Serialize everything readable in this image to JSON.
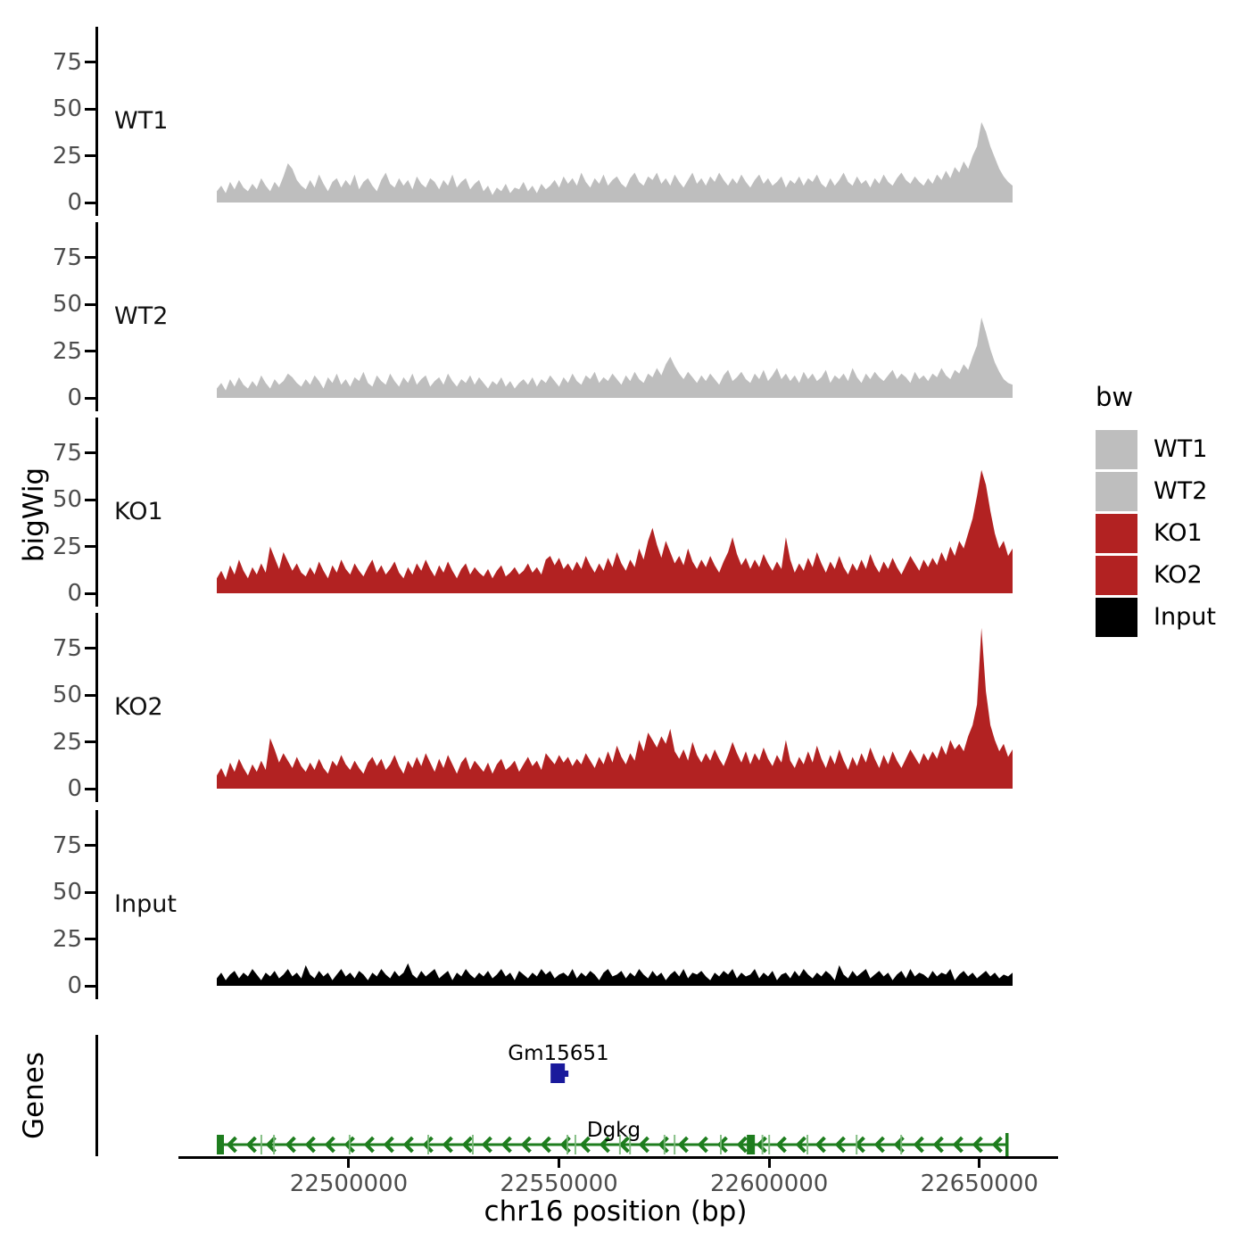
{
  "figure": {
    "y_axis_title": "bigWig",
    "genes_panel_title": "Genes",
    "x_axis_title": "chr16 position (bp)",
    "background_color": "#ffffff",
    "axis_color": "#000000",
    "tick_label_color": "#4d4d4d"
  },
  "legend": {
    "title": "bw",
    "entries": [
      {
        "label": "WT1",
        "color": "#bebebe"
      },
      {
        "label": "WT2",
        "color": "#bebebe"
      },
      {
        "label": "KO1",
        "color": "#b22222"
      },
      {
        "label": "KO2",
        "color": "#b22222"
      },
      {
        "label": "Input",
        "color": "#000000"
      }
    ]
  },
  "chart_data": {
    "type": "area",
    "title": "",
    "xlabel": "chr16 position (bp)",
    "ylabel": "bigWig",
    "grid": false,
    "legend_position": "right",
    "x_domain_bp": [
      22468600,
      22657900
    ],
    "x_ticks": [
      {
        "value": 22500000,
        "label": "22500000"
      },
      {
        "value": 22550000,
        "label": "22550000"
      },
      {
        "value": 22600000,
        "label": "22600000"
      },
      {
        "value": 22650000,
        "label": "22650000"
      }
    ],
    "y_ticks": [
      0,
      25,
      50,
      75
    ],
    "y_axis_max": 94,
    "tracks": [
      {
        "name": "WT1",
        "color": "#bebebe",
        "values": [
          6,
          9,
          5,
          11,
          7,
          12,
          8,
          6,
          10,
          7,
          13,
          9,
          6,
          11,
          8,
          14,
          21,
          18,
          12,
          9,
          7,
          12,
          8,
          15,
          10,
          6,
          11,
          13,
          8,
          12,
          9,
          15,
          7,
          11,
          13,
          9,
          6,
          12,
          16,
          10,
          8,
          13,
          9,
          12,
          7,
          14,
          10,
          8,
          13,
          11,
          7,
          12,
          9,
          15,
          8,
          11,
          13,
          7,
          10,
          12,
          6,
          9,
          4,
          8,
          6,
          10,
          5,
          8,
          7,
          11,
          6,
          9,
          5,
          10,
          7,
          9,
          12,
          8,
          14,
          10,
          13,
          9,
          16,
          11,
          8,
          13,
          10,
          15,
          9,
          12,
          14,
          10,
          8,
          13,
          16,
          11,
          9,
          14,
          12,
          16,
          10,
          13,
          9,
          15,
          11,
          8,
          12,
          16,
          10,
          13,
          9,
          14,
          11,
          16,
          12,
          9,
          13,
          10,
          15,
          11,
          8,
          12,
          15,
          10,
          13,
          9,
          11,
          14,
          8,
          12,
          10,
          14,
          9,
          13,
          11,
          15,
          10,
          8,
          13,
          9,
          12,
          16,
          11,
          9,
          14,
          10,
          12,
          8,
          13,
          10,
          15,
          11,
          9,
          13,
          16,
          12,
          10,
          14,
          11,
          9,
          13,
          10,
          15,
          12,
          17,
          13,
          19,
          16,
          22,
          18,
          25,
          30,
          43,
          38,
          30,
          24,
          18,
          14,
          11,
          9
        ]
      },
      {
        "name": "WT2",
        "color": "#bebebe",
        "values": [
          5,
          8,
          4,
          10,
          6,
          11,
          7,
          5,
          9,
          6,
          12,
          8,
          5,
          10,
          7,
          9,
          13,
          11,
          8,
          6,
          10,
          7,
          12,
          9,
          5,
          11,
          8,
          13,
          7,
          10,
          6,
          11,
          9,
          14,
          8,
          6,
          12,
          9,
          7,
          13,
          9,
          6,
          11,
          8,
          13,
          7,
          10,
          12,
          6,
          9,
          11,
          7,
          13,
          9,
          6,
          10,
          8,
          12,
          7,
          11,
          8,
          5,
          9,
          7,
          11,
          6,
          9,
          5,
          8,
          10,
          7,
          11,
          6,
          10,
          8,
          12,
          9,
          6,
          11,
          8,
          13,
          9,
          7,
          12,
          10,
          14,
          8,
          11,
          9,
          13,
          10,
          7,
          12,
          9,
          14,
          10,
          8,
          13,
          11,
          16,
          12,
          18,
          22,
          17,
          13,
          10,
          14,
          11,
          8,
          12,
          9,
          13,
          10,
          7,
          12,
          15,
          9,
          11,
          14,
          10,
          8,
          13,
          10,
          15,
          9,
          12,
          16,
          10,
          13,
          9,
          12,
          8,
          14,
          10,
          13,
          9,
          11,
          15,
          8,
          12,
          10,
          13,
          9,
          16,
          11,
          8,
          13,
          10,
          14,
          11,
          9,
          12,
          15,
          10,
          13,
          11,
          8,
          14,
          10,
          12,
          9,
          13,
          11,
          16,
          12,
          10,
          15,
          13,
          18,
          15,
          22,
          28,
          43,
          35,
          26,
          19,
          14,
          10,
          8,
          7
        ]
      },
      {
        "name": "KO1",
        "color": "#b22222",
        "values": [
          8,
          12,
          7,
          15,
          10,
          18,
          12,
          8,
          14,
          10,
          16,
          11,
          25,
          19,
          13,
          22,
          17,
          12,
          16,
          11,
          9,
          14,
          10,
          17,
          12,
          8,
          15,
          11,
          18,
          13,
          10,
          16,
          12,
          9,
          14,
          18,
          11,
          15,
          10,
          13,
          17,
          11,
          8,
          14,
          10,
          16,
          12,
          18,
          13,
          9,
          15,
          11,
          17,
          12,
          8,
          13,
          16,
          10,
          14,
          11,
          9,
          13,
          8,
          12,
          15,
          9,
          11,
          14,
          10,
          12,
          16,
          11,
          14,
          10,
          18,
          20,
          15,
          19,
          13,
          16,
          12,
          17,
          13,
          20,
          15,
          11,
          16,
          12,
          19,
          14,
          22,
          16,
          12,
          18,
          14,
          24,
          18,
          28,
          35,
          26,
          19,
          28,
          22,
          16,
          20,
          15,
          24,
          17,
          13,
          18,
          14,
          20,
          15,
          11,
          17,
          22,
          30,
          21,
          15,
          19,
          13,
          18,
          14,
          21,
          16,
          12,
          17,
          13,
          30,
          18,
          11,
          16,
          12,
          19,
          14,
          22,
          16,
          11,
          17,
          13,
          20,
          14,
          10,
          16,
          12,
          18,
          13,
          21,
          15,
          11,
          17,
          13,
          19,
          14,
          10,
          15,
          20,
          16,
          12,
          18,
          14,
          19,
          15,
          22,
          17,
          25,
          20,
          28,
          24,
          32,
          40,
          52,
          66,
          58,
          44,
          32,
          24,
          28,
          20,
          24
        ]
      },
      {
        "name": "KO2",
        "color": "#b22222",
        "values": [
          7,
          11,
          6,
          14,
          9,
          16,
          11,
          7,
          13,
          9,
          15,
          10,
          27,
          21,
          14,
          19,
          15,
          11,
          17,
          12,
          9,
          14,
          10,
          16,
          11,
          8,
          15,
          12,
          18,
          13,
          10,
          15,
          11,
          8,
          14,
          17,
          12,
          16,
          10,
          13,
          18,
          12,
          8,
          15,
          11,
          17,
          12,
          19,
          14,
          9,
          16,
          11,
          18,
          13,
          8,
          14,
          17,
          10,
          15,
          12,
          9,
          14,
          8,
          13,
          16,
          10,
          12,
          15,
          9,
          13,
          17,
          12,
          15,
          10,
          19,
          16,
          13,
          18,
          14,
          17,
          12,
          16,
          13,
          19,
          15,
          11,
          17,
          13,
          20,
          14,
          23,
          17,
          13,
          19,
          15,
          26,
          20,
          30,
          26,
          22,
          28,
          24,
          32,
          20,
          16,
          21,
          15,
          25,
          18,
          14,
          19,
          15,
          21,
          16,
          12,
          18,
          25,
          19,
          14,
          20,
          13,
          19,
          15,
          22,
          16,
          12,
          18,
          14,
          26,
          15,
          11,
          17,
          13,
          20,
          14,
          23,
          16,
          11,
          18,
          13,
          21,
          15,
          10,
          17,
          12,
          19,
          14,
          22,
          16,
          11,
          18,
          13,
          20,
          15,
          11,
          16,
          21,
          17,
          13,
          19,
          15,
          20,
          16,
          23,
          18,
          26,
          21,
          24,
          20,
          28,
          34,
          45,
          86,
          52,
          34,
          26,
          20,
          24,
          17,
          21
        ]
      },
      {
        "name": "Input",
        "color": "#000000",
        "values": [
          4,
          7,
          3,
          6,
          8,
          4,
          7,
          5,
          9,
          6,
          3,
          7,
          5,
          8,
          4,
          6,
          9,
          5,
          7,
          4,
          11,
          6,
          4,
          8,
          5,
          7,
          3,
          6,
          9,
          5,
          7,
          4,
          8,
          6,
          3,
          7,
          5,
          9,
          6,
          4,
          8,
          5,
          7,
          12,
          6,
          4,
          8,
          5,
          7,
          9,
          4,
          6,
          8,
          3,
          7,
          5,
          9,
          6,
          4,
          7,
          5,
          8,
          4,
          6,
          9,
          5,
          7,
          3,
          8,
          6,
          4,
          7,
          5,
          9,
          6,
          8,
          4,
          6,
          7,
          5,
          9,
          4,
          7,
          5,
          8,
          6,
          3,
          7,
          9,
          5,
          6,
          8,
          4,
          7,
          5,
          9,
          6,
          4,
          8,
          5,
          7,
          3,
          6,
          8,
          5,
          9,
          4,
          7,
          6,
          8,
          5,
          3,
          7,
          5,
          8,
          6,
          9,
          4,
          7,
          5,
          6,
          9,
          4,
          7,
          5,
          8,
          3,
          6,
          7,
          4,
          8,
          5,
          9,
          6,
          4,
          7,
          5,
          8,
          6,
          3,
          11,
          6,
          4,
          8,
          5,
          7,
          9,
          4,
          6,
          8,
          5,
          7,
          3,
          6,
          8,
          4,
          9,
          5,
          7,
          6,
          4,
          8,
          5,
          7,
          6,
          9,
          3,
          6,
          8,
          5,
          7,
          4,
          6,
          8,
          5,
          7,
          4,
          6,
          5,
          7
        ]
      }
    ],
    "genes": [
      {
        "name": "Gm15651",
        "color": "#1a1a9c",
        "start_bp": 22548000,
        "end_bp": 22551400,
        "glyph": "box"
      },
      {
        "name": "Dgkg",
        "color": "#1e7d1e",
        "exon_tick_color": "#79b879",
        "start_bp": 22468600,
        "end_bp": 22656200,
        "strand": "-",
        "exon_ticks_bp": [
          22479200,
          22482200,
          22500200,
          22518900,
          22529500,
          22552000,
          22553900,
          22564500,
          22566900,
          22575100,
          22577500,
          22588500,
          22598400,
          22600000,
          22609100,
          22620800,
          22631400
        ],
        "exon_blocks_bp": [
          22468600,
          22594900
        ],
        "end_bar_bp": 22656200,
        "glyph": "gene-model"
      }
    ]
  }
}
